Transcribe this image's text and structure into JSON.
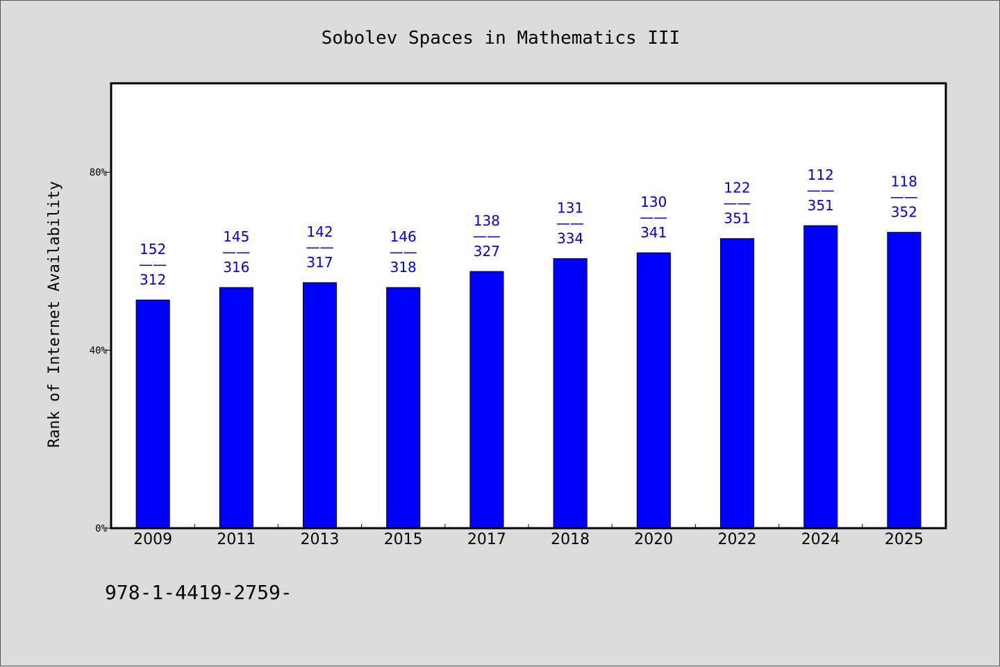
{
  "chart_data": {
    "type": "bar",
    "title": "Sobolev Spaces in Mathematics III",
    "xlabel": "",
    "ylabel": "Rank of Internet Availability",
    "ylim": [
      0,
      100
    ],
    "yticks": [
      0,
      40,
      80
    ],
    "ytick_labels": [
      "0%",
      "40%",
      "80%"
    ],
    "categories": [
      "2009",
      "2011",
      "2013",
      "2015",
      "2017",
      "2018",
      "2020",
      "2022",
      "2024",
      "2025"
    ],
    "values": [
      51.3,
      54.1,
      55.2,
      54.1,
      57.7,
      60.6,
      61.9,
      65.1,
      68.0,
      66.5
    ],
    "data_labels": [
      {
        "top": "152",
        "sep": "——",
        "bottom": "312"
      },
      {
        "top": "145",
        "sep": "——",
        "bottom": "316"
      },
      {
        "top": "142",
        "sep": "——",
        "bottom": "317"
      },
      {
        "top": "146",
        "sep": "——",
        "bottom": "318"
      },
      {
        "top": "138",
        "sep": "——",
        "bottom": "327"
      },
      {
        "top": "131",
        "sep": "——",
        "bottom": "334"
      },
      {
        "top": "130",
        "sep": "——",
        "bottom": "341"
      },
      {
        "top": "122",
        "sep": "——",
        "bottom": "351"
      },
      {
        "top": "112",
        "sep": "——",
        "bottom": "351"
      },
      {
        "top": "118",
        "sep": "——",
        "bottom": "352"
      }
    ],
    "bar_color": "#0000ff",
    "label_color": "#0000cc",
    "background": "#dcdcdc",
    "plot_background": "#ffffff",
    "grid": false,
    "legend": "none"
  },
  "footnote": "978-1-4419-2759-"
}
